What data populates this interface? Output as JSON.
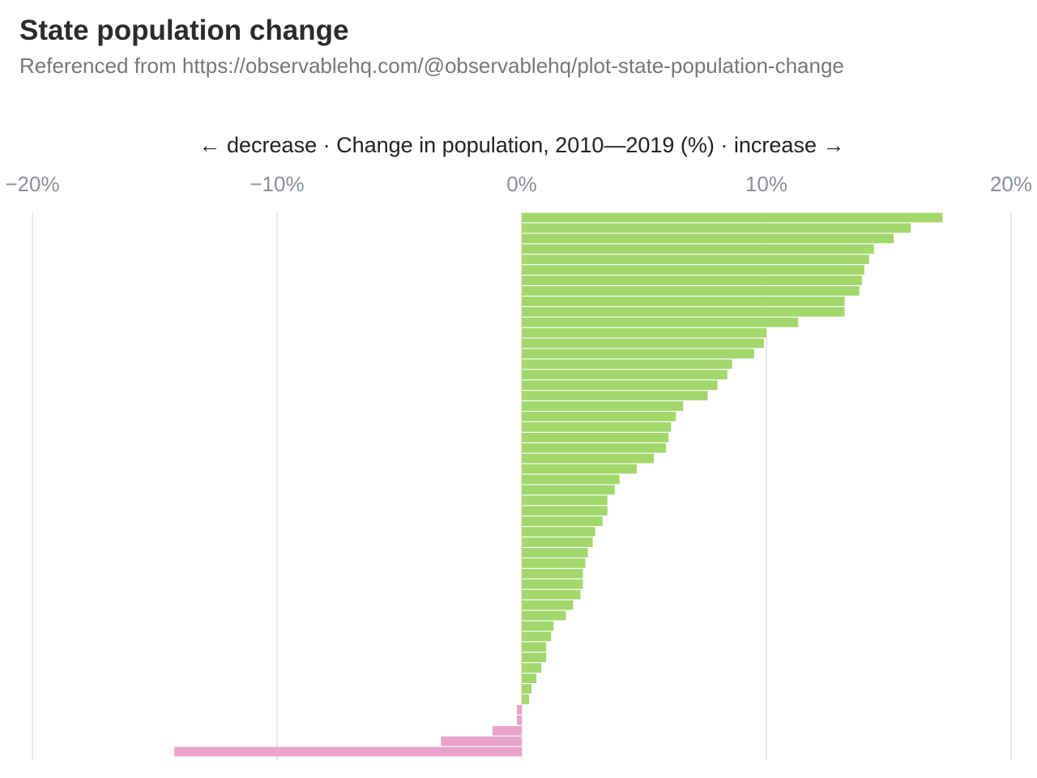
{
  "title": "State population change",
  "subtitle": "Referenced from https://observablehq.com/@observablehq/plot-state-population-change",
  "chart_data": {
    "type": "bar",
    "orientation": "horizontal",
    "xlabel": "← decrease · Change in population, 2010—2019 (%) · increase →",
    "xlim": [
      -20,
      20
    ],
    "xticks": [
      -20,
      -10,
      0,
      10,
      20
    ],
    "xtick_labels": [
      "−20%",
      "−10%",
      "0%",
      "10%",
      "20%"
    ],
    "grid": true,
    "colors": {
      "increase": "#a3d86c",
      "decrease": "#eaa3ca"
    },
    "values": [
      17.2,
      15.9,
      15.2,
      14.4,
      14.2,
      14.0,
      13.9,
      13.8,
      13.2,
      13.2,
      11.3,
      10.0,
      9.9,
      9.5,
      8.6,
      8.4,
      8.0,
      7.6,
      6.6,
      6.3,
      6.1,
      6.0,
      5.9,
      5.4,
      4.7,
      4.0,
      3.8,
      3.5,
      3.5,
      3.3,
      3.0,
      2.9,
      2.7,
      2.6,
      2.5,
      2.5,
      2.4,
      2.1,
      1.8,
      1.3,
      1.2,
      1.0,
      1.0,
      0.8,
      0.6,
      0.4,
      0.3,
      -0.2,
      -0.2,
      -1.2,
      -3.3,
      -14.2
    ]
  }
}
